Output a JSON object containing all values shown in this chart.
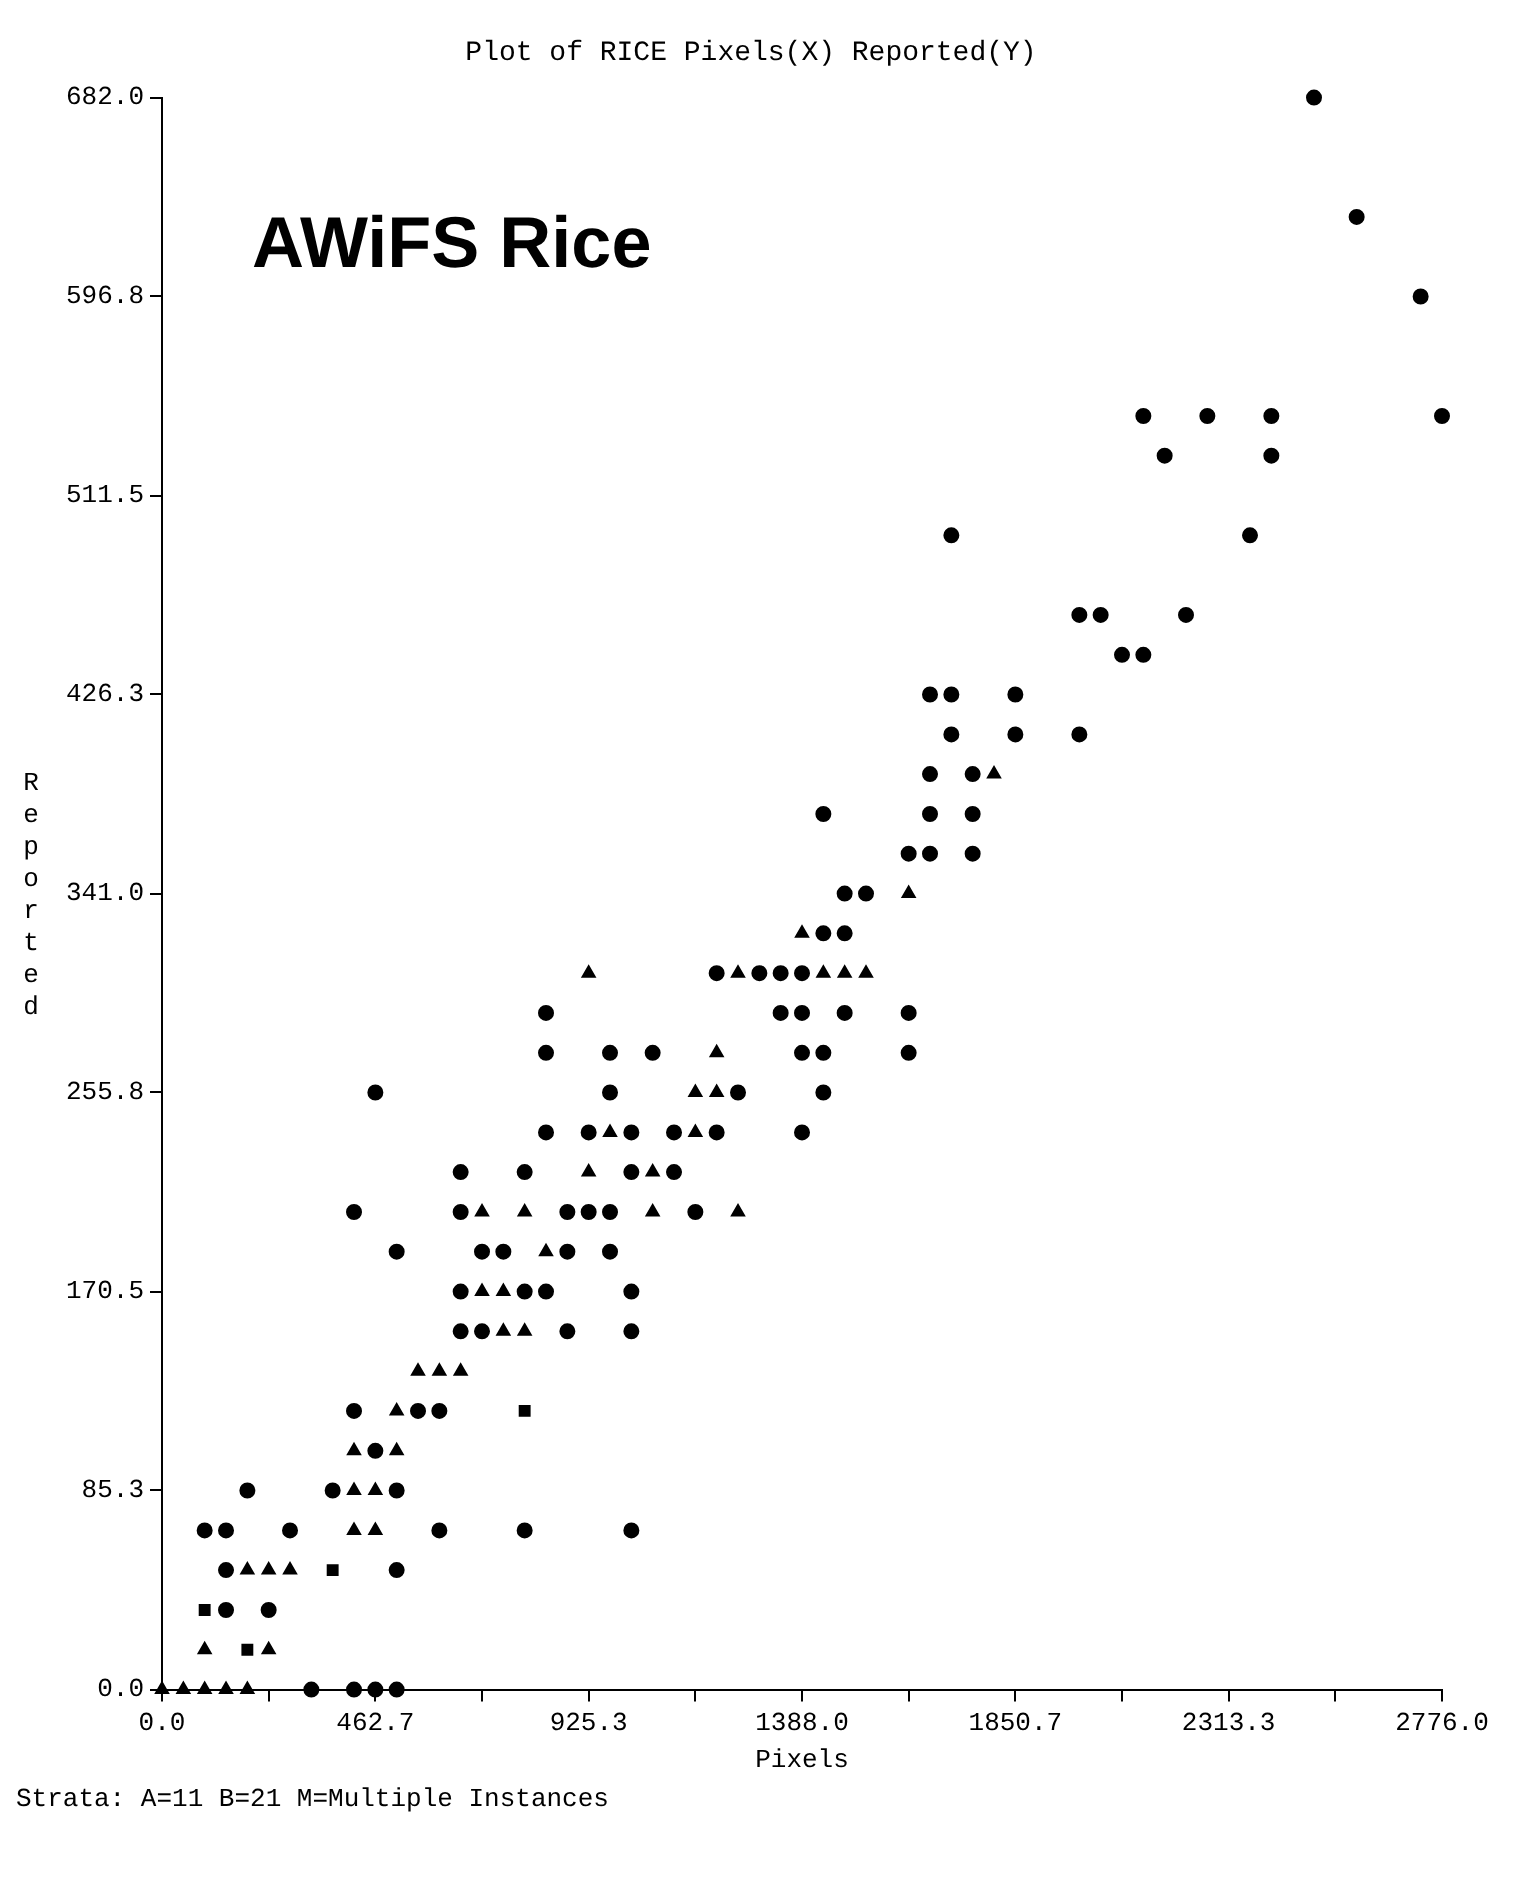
{
  "chart_data": {
    "type": "scatter",
    "title": "Plot of RICE Pixels(X) Reported(Y)",
    "xlabel": "Pixels",
    "ylabel": "Reported",
    "annotations": [
      "AWiFS Rice",
      "Strata: A=11 B=21  M=Multiple Instances"
    ],
    "xlim": [
      0,
      2776
    ],
    "ylim": [
      0,
      682
    ],
    "xticks": [
      {
        "value": 0,
        "label": "0.0"
      },
      {
        "value": 231.3,
        "label": null
      },
      {
        "value": 462.7,
        "label": "462.7"
      },
      {
        "value": 694.0,
        "label": null
      },
      {
        "value": 925.3,
        "label": "925.3"
      },
      {
        "value": 1156.7,
        "label": null
      },
      {
        "value": 1388.0,
        "label": "1388.0"
      },
      {
        "value": 1619.3,
        "label": null
      },
      {
        "value": 1850.7,
        "label": "1850.7"
      },
      {
        "value": 2082.0,
        "label": null
      },
      {
        "value": 2313.3,
        "label": "2313.3"
      },
      {
        "value": 2544.7,
        "label": null
      },
      {
        "value": 2776.0,
        "label": "2776.0"
      }
    ],
    "yticks": [
      {
        "value": 0,
        "label": "0.0"
      },
      {
        "value": 85.3,
        "label": "85.3"
      },
      {
        "value": 170.5,
        "label": "170.5"
      },
      {
        "value": 255.8,
        "label": "255.8"
      },
      {
        "value": 341.0,
        "label": "341.0"
      },
      {
        "value": 426.3,
        "label": "426.3"
      },
      {
        "value": 511.5,
        "label": "511.5"
      },
      {
        "value": 596.8,
        "label": "596.8"
      },
      {
        "value": 682.0,
        "label": "682.0"
      }
    ],
    "grid": false,
    "legend": false,
    "series": [
      {
        "color": "#000000",
        "marker": "circle",
        "x": [
          323.9,
          416.4,
          462.7,
          508.9,
          138.8,
          231.3,
          138.8,
          508.9,
          92.5,
          138.8,
          277.6,
          601.5,
          786.5,
          1017.9,
          185.1,
          370.1,
          508.9,
          462.7,
          416.4,
          555.2,
          601.5,
          647.7,
          694.0,
          879.1,
          1017.9,
          647.7,
          786.5,
          832.8,
          1017.9,
          508.9,
          694.0,
          740.3,
          879.1,
          971.6,
          416.4,
          647.7,
          879.1,
          925.3,
          971.6,
          1156.7,
          647.7,
          786.5,
          1017.9,
          1110.4,
          832.8,
          925.3,
          1017.9,
          1110.4,
          1202.9,
          1388.0,
          462.7,
          971.6,
          1249.2,
          1434.3,
          832.8,
          971.6,
          1064.1,
          1388.0,
          1434.3,
          1619.3,
          832.8,
          1341.7,
          1388.0,
          1480.5,
          1619.3,
          1202.9,
          1295.5,
          1341.7,
          1388.0,
          1434.3,
          1480.5,
          1480.5,
          1526.8,
          1619.3,
          1665.6,
          1758.1,
          1434.3,
          1665.6,
          1758.1,
          1665.6,
          1758.1,
          1711.9,
          1850.7,
          1989.5,
          1665.6,
          1711.9,
          1850.7,
          2082.0,
          2128.3,
          1989.5,
          2035.7,
          2220.8,
          1711.9,
          2359.6,
          2174.5,
          2405.9,
          2128.3,
          2267.1,
          2405.9,
          2776.0,
          2729.7,
          2590.9,
          2498.4
        ],
        "values": [
          0,
          0,
          0,
          0,
          34.1,
          34.1,
          51.2,
          51.2,
          68.2,
          68.2,
          68.2,
          68.2,
          68.2,
          68.2,
          85.3,
          85.3,
          85.3,
          102.3,
          119.4,
          119.4,
          119.4,
          153.5,
          153.5,
          153.5,
          153.5,
          170.5,
          170.5,
          170.5,
          170.5,
          187.6,
          187.6,
          187.6,
          187.6,
          187.6,
          204.6,
          204.6,
          204.6,
          204.6,
          204.6,
          204.6,
          221.7,
          221.7,
          221.7,
          221.7,
          238.7,
          238.7,
          238.7,
          238.7,
          238.7,
          238.7,
          255.8,
          255.8,
          255.8,
          255.8,
          272.8,
          272.8,
          272.8,
          272.8,
          272.8,
          272.8,
          289.9,
          289.9,
          289.9,
          289.9,
          289.9,
          306.9,
          306.9,
          306.9,
          306.9,
          324.0,
          324.0,
          341.0,
          341.0,
          358.1,
          358.1,
          358.1,
          375.1,
          375.1,
          375.1,
          392.2,
          392.2,
          409.2,
          409.2,
          409.2,
          426.3,
          426.3,
          426.3,
          443.3,
          443.3,
          460.4,
          460.4,
          460.4,
          494.5,
          494.5,
          528.6,
          528.6,
          545.6,
          545.6,
          545.6,
          545.6,
          596.8,
          630.9,
          682.0
        ]
      },
      {
        "color": "#000000",
        "marker": "square",
        "x": [
          185.1,
          92.5,
          370.1,
          786.5
        ],
        "values": [
          17.1,
          34.1,
          51.2,
          119.4
        ]
      },
      {
        "color": "#000000",
        "marker": "triangle",
        "x": [
          0,
          46.3,
          92.5,
          138.8,
          185.1,
          92.5,
          231.3,
          185.1,
          231.3,
          277.6,
          416.4,
          462.7,
          416.4,
          462.7,
          416.4,
          508.9,
          508.9,
          555.2,
          601.5,
          647.7,
          740.3,
          786.5,
          694.0,
          740.3,
          832.8,
          694.0,
          786.5,
          1064.1,
          1249.2,
          925.3,
          1064.1,
          971.6,
          1156.7,
          1156.7,
          1202.9,
          1202.9,
          925.3,
          1249.2,
          1434.3,
          1480.5,
          1526.8,
          1388.0,
          1619.3,
          1804.4
        ],
        "values": [
          0,
          0,
          0,
          0,
          0,
          17.1,
          17.1,
          51.2,
          51.2,
          51.2,
          68.2,
          68.2,
          85.3,
          85.3,
          102.3,
          102.3,
          119.4,
          136.4,
          136.4,
          136.4,
          153.5,
          153.5,
          170.5,
          170.5,
          187.6,
          204.6,
          204.6,
          204.6,
          204.6,
          221.7,
          221.7,
          238.7,
          238.7,
          255.8,
          255.8,
          272.8,
          306.9,
          306.9,
          306.9,
          306.9,
          306.9,
          324.0,
          341.0,
          392.2
        ]
      }
    ]
  }
}
